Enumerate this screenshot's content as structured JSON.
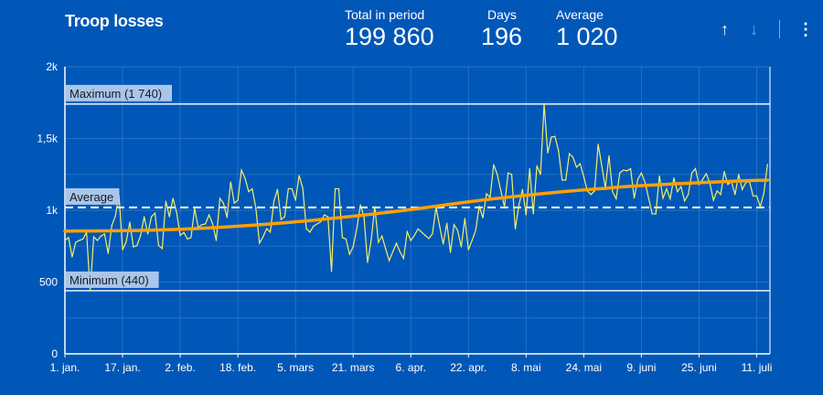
{
  "header": {
    "title": "Troop losses",
    "stats": [
      {
        "label": "Total in period",
        "value": "199 860"
      },
      {
        "label": "Days",
        "value": "196"
      },
      {
        "label": "Average",
        "value": "1 020"
      }
    ],
    "icons": [
      "arrow-up-icon",
      "arrow-down-icon",
      "more-vertical-icon"
    ]
  },
  "colors": {
    "background": "#0157b7",
    "series": "#f2f06a",
    "trend": "#ffa000",
    "reference": "#ffffff",
    "label_box": "#a9c6ea"
  },
  "chart_data": {
    "type": "line",
    "title": "Troop losses",
    "x_ticks": [
      "1. jan.",
      "17. jan.",
      "2. feb.",
      "18. feb.",
      "5. mars",
      "21. mars",
      "6. apr.",
      "22. apr.",
      "8. mai",
      "24. mai",
      "9. juni",
      "25. juni",
      "11. juli"
    ],
    "x_tick_step_days": 16,
    "y_ticks": [
      {
        "value": 0,
        "label": "0"
      },
      {
        "value": 500,
        "label": "500"
      },
      {
        "value": 1000,
        "label": "1k"
      },
      {
        "value": 1500,
        "label": "1,5k"
      },
      {
        "value": 2000,
        "label": "2k"
      }
    ],
    "ylim": [
      0,
      2000
    ],
    "grid": true,
    "y_grid_step": 250,
    "series": [
      {
        "values": [
          790,
          810,
          675,
          777,
          790,
          800,
          847,
          440,
          815,
          790,
          820,
          835,
          700,
          893,
          960,
          1108,
          725,
          780,
          917,
          745,
          755,
          825,
          955,
          835,
          955,
          980,
          755,
          733,
          1063,
          955,
          1083,
          985,
          825,
          845,
          800,
          810,
          1012,
          880,
          900,
          905,
          968,
          905,
          790,
          1083,
          1050,
          950,
          1197,
          1050,
          1070,
          1280,
          1223,
          1130,
          1150,
          1012,
          771,
          815,
          872,
          848,
          1063,
          1146,
          936,
          955,
          1150,
          1150,
          1070,
          1242,
          1155,
          872,
          848,
          890,
          905,
          920,
          968,
          955,
          573,
          1150,
          1150,
          810,
          800,
          694,
          745,
          872,
          1038,
          955,
          637,
          790,
          1025,
          777,
          820,
          733,
          650,
          710,
          770,
          710,
          665,
          850,
          790,
          825,
          870,
          848,
          825,
          803,
          835,
          1020,
          890,
          765,
          910,
          707,
          900,
          860,
          745,
          943,
          725,
          790,
          860,
          1030,
          947,
          1115,
          1090,
          1318,
          1250,
          1135,
          1025,
          1260,
          1250,
          870,
          1035,
          1145,
          968,
          1290,
          975,
          1310,
          1250,
          1740,
          1400,
          1510,
          1515,
          1415,
          1210,
          1210,
          1395,
          1370,
          1300,
          1325,
          1235,
          1135,
          1110,
          1135,
          1460,
          1310,
          1155,
          1380,
          1130,
          1080,
          1260,
          1280,
          1275,
          1290,
          1085,
          1215,
          1260,
          1195,
          1085,
          975,
          975,
          1240,
          1085,
          1150,
          1080,
          1225,
          1130,
          1165,
          1065,
          1110,
          1260,
          1290,
          1180,
          1215,
          1255,
          1190,
          1070,
          1135,
          1110,
          1270,
          1180,
          1200,
          1110,
          1250,
          1145,
          1195,
          1200,
          1100,
          1100,
          1025,
          1120,
          1320
        ]
      }
    ],
    "trend": {
      "days": [
        0,
        30,
        60,
        90,
        120,
        150,
        170,
        195
      ],
      "values": [
        855,
        866,
        911,
        987,
        1083,
        1153,
        1185,
        1210
      ]
    },
    "reference_lines": [
      {
        "label": "Maximum (1 740)",
        "value": 1740,
        "style": "solid"
      },
      {
        "label": "Average",
        "value": 1020,
        "style": "dashed"
      },
      {
        "label": "Minimum (440)",
        "value": 440,
        "style": "solid"
      }
    ]
  }
}
